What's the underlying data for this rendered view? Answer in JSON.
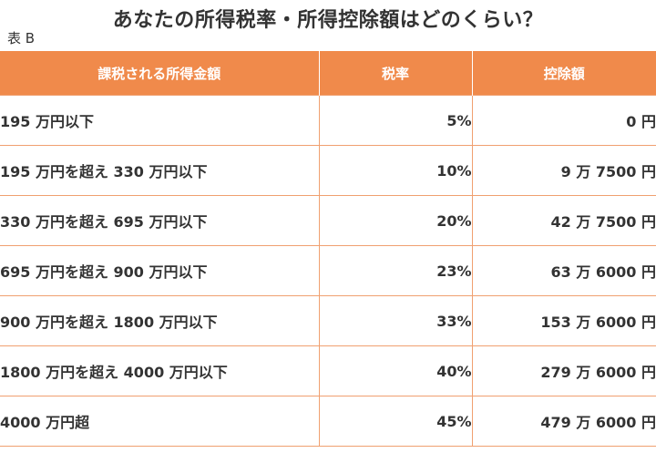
{
  "title": "あなたの所得税率・所得控除額はどのくらい？",
  "table_label": "表 B",
  "headers": {
    "income": "課税される所得金額",
    "rate": "税率",
    "deduction": "控除額"
  },
  "rows": [
    {
      "income": "195 万円以下",
      "rate": "5%",
      "deduction": "0 円"
    },
    {
      "income": "195 万円を超え 330 万円以下",
      "rate": "10%",
      "deduction": "9 万 7500 円"
    },
    {
      "income": "330 万円を超え 695 万円以下",
      "rate": "20%",
      "deduction": "42 万 7500 円"
    },
    {
      "income": "695 万円を超え 900 万円以下",
      "rate": "23%",
      "deduction": "63 万 6000 円"
    },
    {
      "income": "900 万円を超え 1800 万円以下",
      "rate": "33%",
      "deduction": "153 万 6000 円"
    },
    {
      "income": "1800 万円を超え 4000 万円以下",
      "rate": "40%",
      "deduction": "279 万 6000 円"
    },
    {
      "income": "4000 万円超",
      "rate": "45%",
      "deduction": "479 万 6000 円"
    }
  ]
}
